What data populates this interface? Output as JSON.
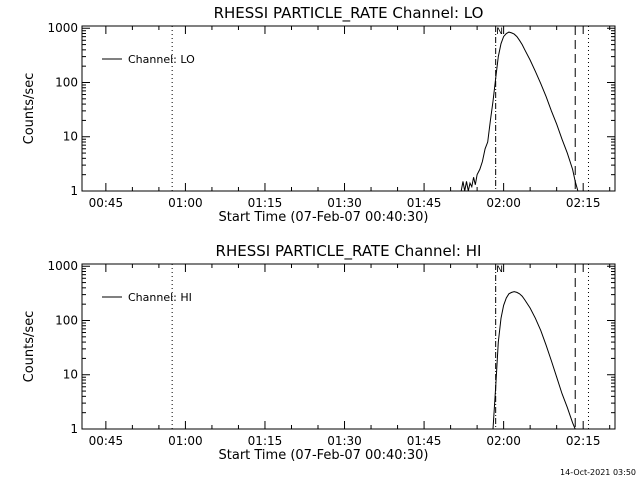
{
  "timestamp": "14-Oct-2021 03:50",
  "chart_data": [
    {
      "type": "line",
      "title": "RHESSI PARTICLE_RATE Channel: LO",
      "xlabel": "Start Time (07-Feb-07 00:40:30)",
      "ylabel": "Counts/sec",
      "y_scale": "log",
      "xlim": [
        "00:40:30",
        "02:21:00"
      ],
      "ylim": [
        1,
        1100
      ],
      "x_tick_labels": [
        "00:45",
        "01:00",
        "01:15",
        "01:30",
        "01:45",
        "02:00",
        "02:15"
      ],
      "y_tick_labels": [
        "1",
        "10",
        "100",
        "1000"
      ],
      "legend": "top-left",
      "grid": false,
      "marker_label": "N",
      "vertical_lines": [
        {
          "time": "00:57:30",
          "style": "dotted"
        },
        {
          "time": "01:58:30",
          "style": "dash-dot"
        },
        {
          "time": "02:13:30",
          "style": "dashed"
        },
        {
          "time": "02:16:00",
          "style": "dotted"
        }
      ],
      "series": [
        {
          "name": "Channel: LO",
          "x": [
            "01:52:00",
            "01:52:20",
            "01:52:40",
            "01:53:00",
            "01:53:20",
            "01:53:40",
            "01:54:00",
            "01:54:20",
            "01:54:40",
            "01:55:00",
            "01:55:30",
            "01:56:00",
            "01:56:30",
            "01:57:00",
            "01:57:30",
            "01:58:00",
            "01:58:30",
            "01:59:00",
            "01:59:30",
            "02:00:00",
            "02:00:30",
            "02:01:00",
            "02:01:30",
            "02:02:00",
            "02:02:30",
            "02:03:00",
            "02:03:30",
            "02:04:00",
            "02:05:00",
            "02:06:00",
            "02:07:00",
            "02:08:00",
            "02:09:00",
            "02:10:00",
            "02:11:00",
            "02:12:00",
            "02:13:00",
            "02:13:30",
            "02:14:00"
          ],
          "values": [
            1,
            1.5,
            1,
            1.5,
            1,
            1.4,
            1.2,
            1.8,
            1.3,
            2,
            2.5,
            3.5,
            6,
            8,
            20,
            45,
            120,
            300,
            520,
            700,
            800,
            850,
            820,
            780,
            700,
            600,
            500,
            400,
            260,
            160,
            95,
            55,
            30,
            17,
            9,
            5,
            2.5,
            1.5,
            1
          ]
        }
      ]
    },
    {
      "type": "line",
      "title": "RHESSI PARTICLE_RATE Channel: HI",
      "xlabel": "Start Time (07-Feb-07 00:40:30)",
      "ylabel": "Counts/sec",
      "y_scale": "log",
      "xlim": [
        "00:40:30",
        "02:21:00"
      ],
      "ylim": [
        1,
        1100
      ],
      "x_tick_labels": [
        "00:45",
        "01:00",
        "01:15",
        "01:30",
        "01:45",
        "02:00",
        "02:15"
      ],
      "y_tick_labels": [
        "1",
        "10",
        "100",
        "1000"
      ],
      "legend": "top-left",
      "grid": false,
      "marker_label": "N",
      "vertical_lines": [
        {
          "time": "00:57:30",
          "style": "dotted"
        },
        {
          "time": "01:58:30",
          "style": "dash-dot"
        },
        {
          "time": "02:13:30",
          "style": "dashed"
        },
        {
          "time": "02:16:00",
          "style": "dotted"
        }
      ],
      "series": [
        {
          "name": "Channel: HI",
          "x": [
            "01:58:00",
            "01:58:30",
            "01:59:00",
            "01:59:30",
            "02:00:00",
            "02:00:30",
            "02:01:00",
            "02:01:30",
            "02:02:00",
            "02:02:30",
            "02:03:00",
            "02:03:30",
            "02:04:00",
            "02:05:00",
            "02:06:00",
            "02:07:00",
            "02:08:00",
            "02:09:00",
            "02:10:00",
            "02:11:00",
            "02:12:00",
            "02:13:00",
            "02:13:30"
          ],
          "values": [
            1,
            6,
            40,
            110,
            190,
            260,
            310,
            330,
            340,
            330,
            310,
            280,
            240,
            170,
            110,
            65,
            35,
            18,
            9,
            4.5,
            2.5,
            1.3,
            1
          ]
        }
      ]
    }
  ]
}
